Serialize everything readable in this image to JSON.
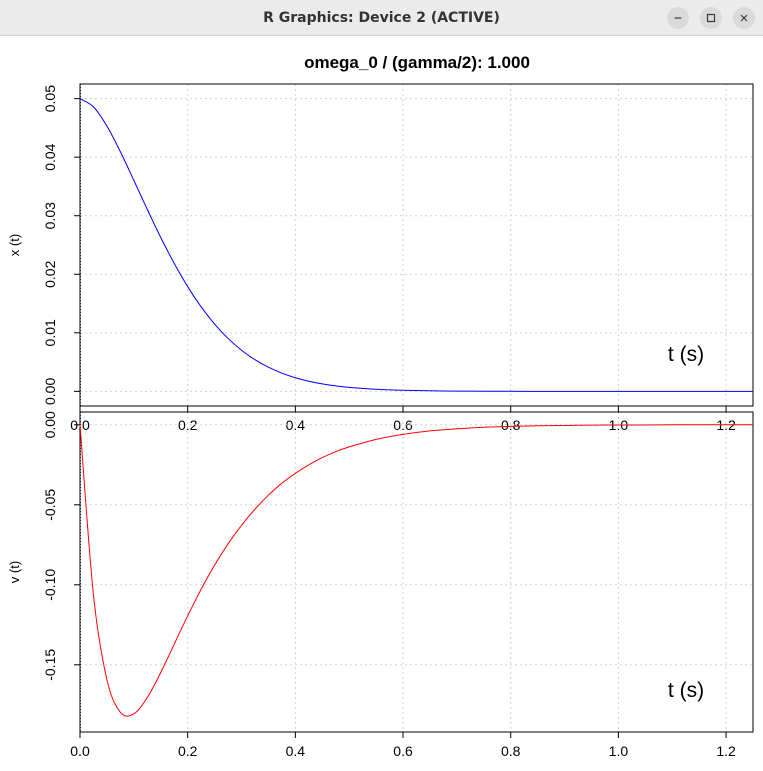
{
  "window": {
    "title": "R Graphics: Device 2 (ACTIVE)",
    "controls": {
      "minimize_icon": "minimize-icon",
      "maximize_icon": "maximize-icon",
      "close_icon": "close-icon"
    }
  },
  "chart_data": [
    {
      "type": "line",
      "title": "omega_0 / (gamma/2): 1.000",
      "xlabel": "t (s)",
      "ylabel": "x (t)",
      "xlim": [
        0,
        1.25
      ],
      "ylim": [
        -0.0025,
        0.0525
      ],
      "xticks": [
        "0.0",
        "0.2",
        "0.4",
        "0.6",
        "0.8",
        "1.0",
        "1.2"
      ],
      "yticks": [
        "0.00",
        "0.01",
        "0.02",
        "0.03",
        "0.04",
        "0.05"
      ],
      "grid": true,
      "color": "#0000ff",
      "x": [
        0,
        0.025,
        0.05,
        0.075,
        0.1,
        0.125,
        0.15,
        0.175,
        0.2,
        0.225,
        0.25,
        0.275,
        0.3,
        0.325,
        0.35,
        0.375,
        0.4,
        0.425,
        0.45,
        0.475,
        0.5,
        0.55,
        0.6,
        0.65,
        0.7,
        0.75,
        0.8,
        0.85,
        0.9,
        0.95,
        1.0,
        1.05,
        1.1,
        1.15,
        1.2,
        1.25
      ],
      "y": [
        0.05,
        0.04859,
        0.04531,
        0.04093,
        0.03604,
        0.03107,
        0.02628,
        0.02186,
        0.0179,
        0.01444,
        0.0115,
        0.00904,
        0.00703,
        0.00541,
        0.00412,
        0.00311,
        0.00233,
        0.00173,
        0.00128,
        0.00094,
        0.00069,
        0.00036,
        0.00019,
        0.0001,
        5e-05,
        2e-05,
        1e-05,
        0.0,
        0.0,
        0.0,
        0.0,
        0.0,
        0.0,
        0.0,
        0.0,
        0.0
      ]
    },
    {
      "type": "line",
      "title": "",
      "xlabel": "t (s)",
      "ylabel": "v (t)",
      "xlim": [
        0,
        1.25
      ],
      "ylim": [
        -0.192,
        0.008
      ],
      "xticks": [
        "0.0",
        "0.2",
        "0.4",
        "0.6",
        "0.8",
        "1.0",
        "1.2"
      ],
      "yticks": [
        "0.00",
        "-0.05",
        "-0.10",
        "-0.15"
      ],
      "grid": true,
      "color": "#ff0000",
      "x": [
        0,
        0.025,
        0.05,
        0.075,
        0.1,
        0.125,
        0.15,
        0.175,
        0.2,
        0.225,
        0.25,
        0.275,
        0.3,
        0.325,
        0.35,
        0.375,
        0.4,
        0.425,
        0.45,
        0.475,
        0.5,
        0.55,
        0.6,
        0.65,
        0.7,
        0.75,
        0.8,
        0.85,
        0.9,
        0.95,
        1.0,
        1.05,
        1.1,
        1.15,
        1.2,
        1.25
      ],
      "y": [
        0,
        -0.1063,
        -0.1593,
        -0.1797,
        -0.1806,
        -0.1704,
        -0.1548,
        -0.1371,
        -0.1194,
        -0.1028,
        -0.0877,
        -0.0744,
        -0.0628,
        -0.0527,
        -0.044,
        -0.0365,
        -0.0303,
        -0.025,
        -0.0205,
        -0.0168,
        -0.0138,
        -0.0091,
        -0.006,
        -0.0038,
        -0.0025,
        -0.0015,
        -0.001,
        -0.0006,
        -0.0004,
        -0.0002,
        -0.0001,
        -0.0001,
        0.0,
        0.0,
        0.0,
        0.0
      ]
    }
  ]
}
